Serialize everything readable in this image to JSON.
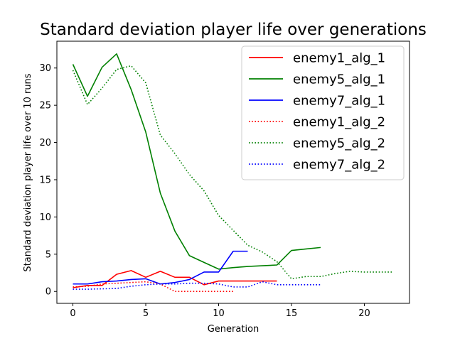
{
  "chart_data": {
    "type": "line",
    "title": "Standard deviation player life over generations",
    "xlabel": "Generation",
    "ylabel": "Standard deviation player life over 10 runs",
    "xlim": [
      -1.1,
      23.1
    ],
    "ylim": [
      -1.6,
      33.6
    ],
    "xticks": [
      0,
      5,
      10,
      15,
      20
    ],
    "yticks": [
      0,
      5,
      10,
      15,
      20,
      25,
      30
    ],
    "grid": false,
    "legend_position": "top-right",
    "series": [
      {
        "name": "enemy1_alg_1",
        "color": "#ff0000",
        "dash": "solid",
        "x": [
          0,
          1,
          2,
          3,
          4,
          5,
          6,
          7,
          8,
          9,
          10,
          11,
          12,
          13,
          14
        ],
        "y": [
          0.5,
          0.8,
          0.8,
          2.3,
          2.8,
          1.9,
          2.7,
          1.9,
          1.9,
          0.9,
          1.4,
          1.4,
          1.4,
          1.4,
          1.4
        ]
      },
      {
        "name": "enemy5_alg_1",
        "color": "#008000",
        "dash": "solid",
        "x": [
          0,
          1,
          2,
          3,
          4,
          5,
          6,
          7,
          8,
          9,
          10,
          11,
          12,
          13,
          14,
          15,
          16,
          17
        ],
        "y": [
          30.5,
          26.2,
          30.1,
          31.9,
          27.1,
          21.4,
          13.2,
          8.1,
          4.8,
          3.9,
          3.0,
          3.2,
          3.35,
          3.45,
          3.55,
          5.5,
          5.7,
          5.9
        ]
      },
      {
        "name": "enemy7_alg_1",
        "color": "#0000ff",
        "dash": "solid",
        "x": [
          0,
          1,
          2,
          3,
          4,
          5,
          6,
          7,
          8,
          9,
          10,
          11,
          12
        ],
        "y": [
          1.0,
          1.0,
          1.3,
          1.4,
          1.6,
          1.7,
          1.0,
          1.2,
          1.6,
          2.6,
          2.6,
          5.4,
          5.4
        ]
      },
      {
        "name": "enemy1_alg_2",
        "color": "#ff0000",
        "dash": "dotted",
        "x": [
          0,
          1,
          2,
          3,
          4,
          5,
          6,
          7,
          8,
          9,
          10,
          11
        ],
        "y": [
          0.6,
          0.7,
          1.0,
          1.1,
          1.2,
          1.3,
          1.0,
          0.0,
          0.0,
          0.0,
          0.0,
          0.0
        ]
      },
      {
        "name": "enemy5_alg_2",
        "color": "#008000",
        "dash": "dotted",
        "x": [
          0,
          1,
          2,
          3,
          4,
          5,
          6,
          7,
          8,
          9,
          10,
          11,
          12,
          13,
          14,
          15,
          16,
          17,
          18,
          19,
          20,
          21,
          22
        ],
        "y": [
          29.7,
          25.1,
          27.3,
          29.8,
          30.3,
          28.0,
          21.0,
          18.5,
          15.7,
          13.5,
          10.2,
          8.2,
          6.2,
          5.3,
          4.0,
          1.7,
          2.0,
          2.0,
          2.4,
          2.7,
          2.6,
          2.6,
          2.6
        ]
      },
      {
        "name": "enemy7_alg_2",
        "color": "#0000ff",
        "dash": "dotted",
        "x": [
          0,
          1,
          2,
          3,
          4,
          5,
          6,
          7,
          8,
          9,
          10,
          11,
          12,
          13,
          14,
          15,
          16,
          17
        ],
        "y": [
          0.3,
          0.3,
          0.35,
          0.4,
          0.7,
          0.9,
          1.0,
          1.0,
          1.1,
          1.1,
          1.0,
          0.6,
          0.6,
          1.3,
          0.9,
          0.9,
          0.9,
          0.9
        ]
      }
    ]
  }
}
